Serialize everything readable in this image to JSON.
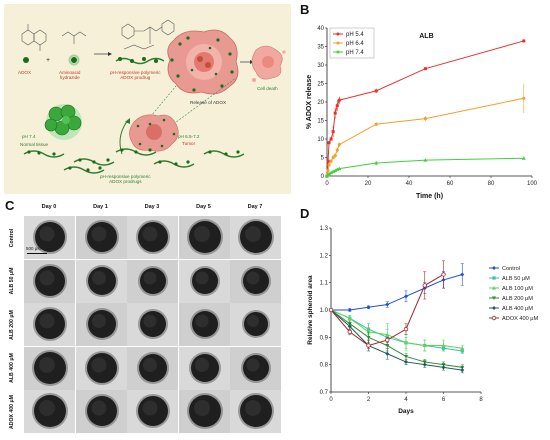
{
  "panel_letters": {
    "a": "A",
    "b": "B",
    "c": "C",
    "d": "D"
  },
  "panelA": {
    "adox": "ADOX",
    "aminoacid_hydrazide": "Aminoacid\nhydrazide",
    "prodrug": "pH-responsive polymeric\nADOX prodrug",
    "release": "Release of ADOX",
    "cell_death": "Cell death",
    "ph74": "pH 7.4",
    "normal_tissue": "Normal tissue",
    "ph_tumor": "pH 6.5-7.2",
    "tumor": "Tumor",
    "prodrugs": "pH-responsive polymeric\nADOX prodrugs"
  },
  "panelC": {
    "days": [
      "Day 0",
      "Day 1",
      "Day 3",
      "Day 5",
      "Day 7"
    ],
    "rows": [
      "Control",
      "ALB 50 μM",
      "ALB 200 μM",
      "ALB 400 μM",
      "ADOX 400 μM"
    ],
    "scale_bar": "500 μM"
  },
  "colors": {
    "control": "#1e4fd8",
    "alb50": "#3fbfa8",
    "alb100": "#59d659",
    "alb200": "#2e8b2e",
    "alb400": "#1f5c5c",
    "adox400": "#a3272b",
    "ph54": "#e8302c",
    "ph64": "#f0a030",
    "ph74": "#40d040"
  },
  "chart_data": [
    {
      "type": "line",
      "title": "ALB",
      "xlabel": "Time (h)",
      "ylabel": "% ADOX release",
      "xlim": [
        0,
        100
      ],
      "ylim": [
        0,
        40
      ],
      "xticks": [
        0,
        20,
        40,
        60,
        80,
        100
      ],
      "yticks": [
        0,
        5,
        10,
        15,
        20,
        25,
        30,
        35,
        40
      ],
      "legend": "top-left",
      "series": [
        {
          "name": "pH 5.4",
          "x": [
            0,
            0.5,
            1,
            2,
            3,
            4,
            5,
            6,
            24,
            48,
            96
          ],
          "y": [
            0,
            4,
            9,
            10,
            12,
            17,
            19,
            20.5,
            23,
            29,
            36.5
          ],
          "err": [
            0,
            0.5,
            0.5,
            0.5,
            1.5,
            1.5,
            1.5,
            1,
            0.6,
            0.4,
            0.3
          ]
        },
        {
          "name": "pH 6.4",
          "x": [
            0,
            0.5,
            1,
            2,
            3,
            4,
            5,
            6,
            24,
            48,
            96
          ],
          "y": [
            0,
            1.5,
            3,
            4,
            5,
            5.5,
            7,
            8.5,
            14,
            15.5,
            21
          ],
          "err": [
            0,
            0.3,
            0.4,
            0.5,
            0.5,
            0.6,
            0.6,
            0.6,
            0.5,
            0.7,
            4
          ]
        },
        {
          "name": "pH 7.4",
          "x": [
            0,
            0.5,
            1,
            2,
            3,
            4,
            5,
            6,
            24,
            48,
            96
          ],
          "y": [
            0,
            0.3,
            0.6,
            0.9,
            1.2,
            1.5,
            1.8,
            2,
            3.5,
            4.3,
            4.8
          ],
          "err": [
            0,
            0.1,
            0.1,
            0.2,
            0.2,
            0.2,
            0.2,
            0.3,
            0.6,
            0.3,
            0.3
          ]
        }
      ]
    },
    {
      "type": "line",
      "xlabel": "Days",
      "ylabel": "Relative spheroid area",
      "xlim": [
        0,
        8
      ],
      "ylim": [
        0.7,
        1.3
      ],
      "xticks": [
        0,
        2,
        4,
        6,
        8
      ],
      "yticks": [
        0.7,
        0.8,
        0.9,
        1.0,
        1.1,
        1.2,
        1.3
      ],
      "legend": "right",
      "series": [
        {
          "name": "Control",
          "x": [
            0,
            1,
            2,
            3,
            4,
            5,
            6,
            7
          ],
          "y": [
            1.0,
            1.0,
            1.01,
            1.02,
            1.05,
            1.08,
            1.11,
            1.13
          ],
          "err": [
            0,
            0.005,
            0.005,
            0.01,
            0.02,
            0.02,
            0.03,
            0.04
          ]
        },
        {
          "name": "ALB 50 μM",
          "x": [
            0,
            1,
            2,
            3,
            4,
            5,
            6,
            7
          ],
          "y": [
            1.0,
            0.97,
            0.93,
            0.9,
            0.88,
            0.87,
            0.86,
            0.85
          ],
          "err": [
            0,
            0.01,
            0.02,
            0.03,
            0.02,
            0.02,
            0.01,
            0.01
          ]
        },
        {
          "name": "ALB 100 μM",
          "x": [
            0,
            1,
            2,
            3,
            4,
            5,
            6,
            7
          ],
          "y": [
            1.0,
            0.97,
            0.92,
            0.91,
            0.88,
            0.87,
            0.87,
            0.86
          ],
          "err": [
            0,
            0.01,
            0.03,
            0.04,
            0.03,
            0.02,
            0.02,
            0.01
          ]
        },
        {
          "name": "ALB 200 μM",
          "x": [
            0,
            1,
            2,
            3,
            4,
            5,
            6,
            7
          ],
          "y": [
            1.0,
            0.95,
            0.9,
            0.87,
            0.83,
            0.81,
            0.8,
            0.79
          ],
          "err": [
            0,
            0.01,
            0.02,
            0.02,
            0.01,
            0.01,
            0.01,
            0.01
          ]
        },
        {
          "name": "ALB 400 μM",
          "x": [
            0,
            1,
            2,
            3,
            4,
            5,
            6,
            7
          ],
          "y": [
            1.0,
            0.94,
            0.87,
            0.84,
            0.81,
            0.8,
            0.79,
            0.78
          ],
          "err": [
            0,
            0.01,
            0.02,
            0.02,
            0.01,
            0.01,
            0.01,
            0.01
          ]
        },
        {
          "name": "ADOX 400 μM",
          "x": [
            0,
            1,
            2,
            3,
            4,
            5,
            6
          ],
          "y": [
            1.0,
            0.92,
            0.87,
            0.89,
            0.93,
            1.09,
            1.13
          ],
          "err": [
            0,
            0.01,
            0.01,
            0.01,
            0.02,
            0.05,
            0.05
          ]
        }
      ]
    }
  ]
}
